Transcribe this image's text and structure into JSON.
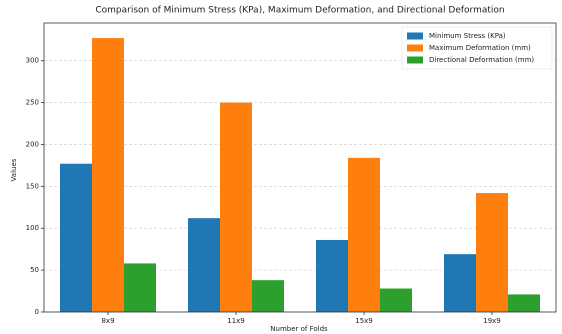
{
  "chart_data": {
    "type": "bar",
    "title": "Comparison of Minimum Stress (KPa), Maximum Deformation, and Directional Deformation",
    "x_label": "Number of Folds",
    "y_label": "Values",
    "categories": [
      "8x9",
      "11x9",
      "15x9",
      "19x9"
    ],
    "series": [
      {
        "name": "Minimum Stress (KPa)",
        "color": "#1f77b4",
        "values": [
          177,
          112,
          86,
          69
        ]
      },
      {
        "name": "Maximum Deformation (mm)",
        "color": "#ff7f0e",
        "values": [
          327,
          250,
          184,
          142
        ]
      },
      {
        "name": "Directional Deformation (mm)",
        "color": "#2ca02c",
        "values": [
          58,
          38,
          28,
          21
        ]
      }
    ],
    "ylim": [
      0,
      345
    ],
    "yticks": [
      0,
      50,
      100,
      150,
      200,
      250,
      300
    ],
    "grid": true,
    "legend": "upper right"
  }
}
